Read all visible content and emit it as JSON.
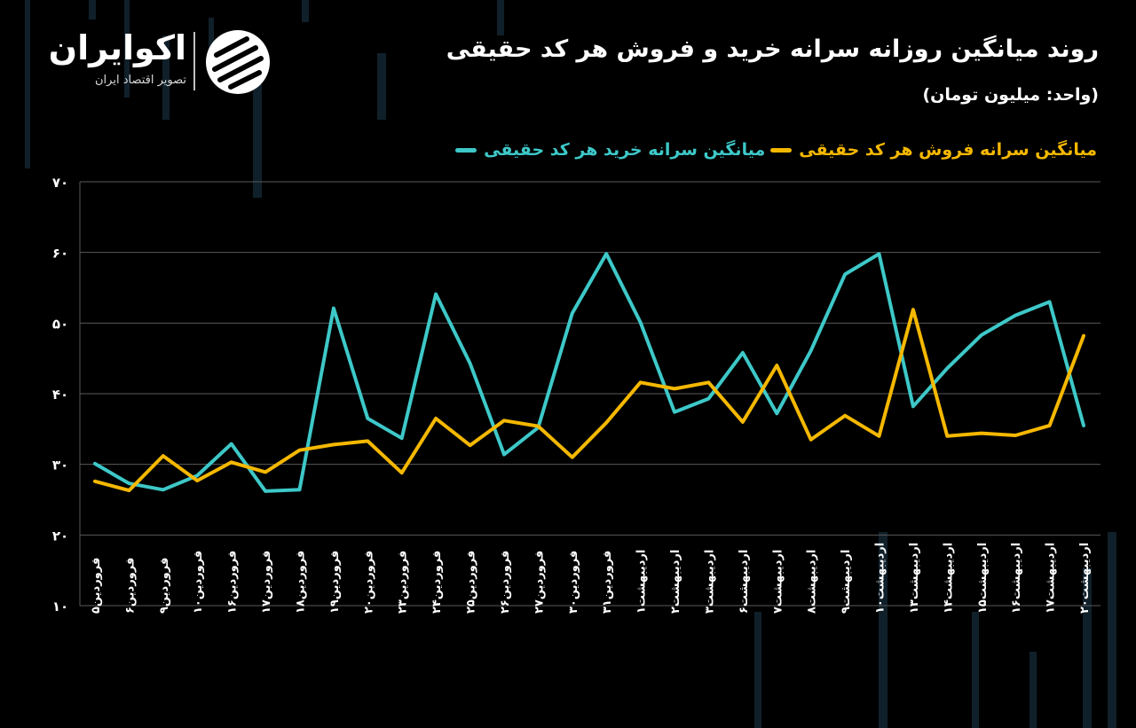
{
  "title": "روند میانگین روزانه سرانه خرید و فروش هر کد حقیقی",
  "subtitle": "(واحد: میلیون تومان)",
  "brand": {
    "name": "اکوایران",
    "tagline": "تصویر اقتصاد ایران"
  },
  "colors": {
    "buy": "#3ec8c8",
    "sell": "#f5b800",
    "grid": "#5a5a5a",
    "background": "#000000"
  },
  "chart_data": {
    "type": "line",
    "title": "روند میانگین روزانه سرانه خرید و فروش هر کد حقیقی",
    "xlabel": "",
    "ylabel": "",
    "ylim": [
      10,
      70
    ],
    "y_ticks": [
      10,
      20,
      30,
      40,
      50,
      60,
      70
    ],
    "y_tick_labels": [
      "۱۰",
      "۲۰",
      "۳۰",
      "۴۰",
      "۵۰",
      "۶۰",
      "۷۰"
    ],
    "grid": true,
    "legend_position": "top-right",
    "categories": [
      "فروردین۵",
      "فروردین۶",
      "فروردین۹",
      "فروردین۱۰",
      "فروردین۱۶",
      "فروردین۱۷",
      "فروردین۱۸",
      "فروردین۱۹",
      "فروردین۲۰",
      "فروردین۲۳",
      "فروردین۲۴",
      "فروردین۲۵",
      "فروردین۲۶",
      "فروردین۲۷",
      "فروردین۳۰",
      "فروردین۳۱",
      "اردیبهشت۱",
      "اردیبهشت۲",
      "اردیبهشت۳",
      "اردیبهشت۶",
      "اردیبهشت۷",
      "اردیبهشت۸",
      "اردیبهشت۹",
      "اردیبهشت۱۰",
      "اردیبهشت۱۳",
      "اردیبهشت۱۴",
      "اردیبهشت۱۵",
      "اردیبهشت۱۶",
      "اردیبهشت۱۷",
      "اردیبهشت۲۰"
    ],
    "series": [
      {
        "name": "میانگین سرانه خرید هر کد حقیقی",
        "color": "#3ec8c8",
        "values": [
          30.1,
          27.3,
          26.4,
          28.4,
          32.9,
          26.2,
          26.4,
          52.1,
          36.5,
          33.7,
          54.1,
          44.3,
          31.4,
          35.2,
          51.4,
          59.8,
          50.1,
          37.4,
          39.3,
          45.8,
          37.2,
          46.1,
          56.9,
          59.8,
          38.2,
          43.6,
          48.3,
          51.1,
          53.0,
          35.5
        ]
      },
      {
        "name": "میانگین سرانه فروش هر کد حقیقی",
        "color": "#f5b800",
        "values": [
          27.6,
          26.3,
          31.2,
          27.7,
          30.3,
          28.9,
          32.0,
          32.8,
          33.3,
          28.8,
          36.5,
          32.7,
          36.2,
          35.4,
          31.0,
          35.9,
          41.6,
          40.7,
          41.6,
          36.0,
          44.0,
          33.5,
          36.9,
          34.0,
          51.9,
          34.0,
          34.4,
          34.1,
          35.5,
          48.2
        ]
      }
    ]
  }
}
